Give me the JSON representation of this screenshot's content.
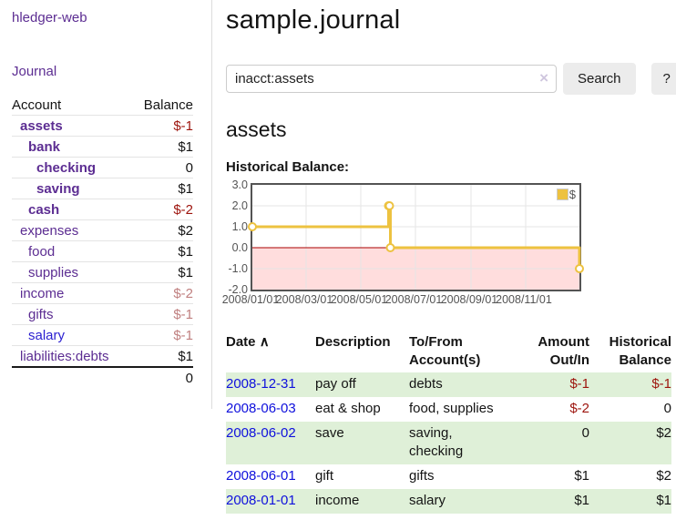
{
  "colors": {
    "link_purple": "#5c2d92",
    "link_blue_date": "#0f10dc",
    "link_blue_account": "#2a1fd0",
    "negative_strong": "#9d140d",
    "negative_soft": "#c08080",
    "row_stripe_green": "#dff0d8",
    "chart_line": "#edc240",
    "chart_negative_fill": "#ffdddd",
    "chart_zero_line": "#aa0000",
    "chart_border": "#545454",
    "grid_line": "#e5e5e5"
  },
  "sidebar": {
    "brand": "hledger-web",
    "nav": {
      "journal": "Journal"
    },
    "accounts": {
      "col_account": "Account",
      "col_balance": "Balance",
      "rows": [
        {
          "name": "assets",
          "balance": "$-1",
          "indent": 1,
          "bold": true,
          "balance_tone": "negative-strong",
          "link_tone": "purple"
        },
        {
          "name": "bank",
          "balance": "$1",
          "indent": 2,
          "bold": true,
          "balance_tone": "normal",
          "link_tone": "purple"
        },
        {
          "name": "checking",
          "balance": "0",
          "indent": 3,
          "bold": true,
          "balance_tone": "normal",
          "link_tone": "purple"
        },
        {
          "name": "saving",
          "balance": "$1",
          "indent": 3,
          "bold": true,
          "balance_tone": "normal",
          "link_tone": "purple"
        },
        {
          "name": "cash",
          "balance": "$-2",
          "indent": 2,
          "bold": true,
          "balance_tone": "negative-strong",
          "link_tone": "purple"
        },
        {
          "name": "expenses",
          "balance": "$2",
          "indent": 1,
          "bold": false,
          "balance_tone": "normal",
          "link_tone": "purple"
        },
        {
          "name": "food",
          "balance": "$1",
          "indent": 2,
          "bold": false,
          "balance_tone": "normal",
          "link_tone": "purple"
        },
        {
          "name": "supplies",
          "balance": "$1",
          "indent": 2,
          "bold": false,
          "balance_tone": "normal",
          "link_tone": "purple"
        },
        {
          "name": "income",
          "balance": "$-2",
          "indent": 1,
          "bold": false,
          "balance_tone": "negative-soft",
          "link_tone": "purple"
        },
        {
          "name": "gifts",
          "balance": "$-1",
          "indent": 2,
          "bold": false,
          "balance_tone": "negative-soft",
          "link_tone": "purple"
        },
        {
          "name": "salary",
          "balance": "$-1",
          "indent": 2,
          "bold": false,
          "balance_tone": "negative-soft",
          "link_tone": "blue"
        },
        {
          "name": "liabilities:debts",
          "balance": "$1",
          "indent": 1,
          "bold": false,
          "balance_tone": "normal",
          "link_tone": "purple"
        }
      ],
      "total": "0"
    }
  },
  "header": {
    "title": "sample.journal"
  },
  "search": {
    "value": "inacct:assets",
    "clear_icon": "×",
    "search_button": "Search",
    "help_button": "?"
  },
  "account_view": {
    "heading": "assets",
    "chart_title": "Historical Balance:"
  },
  "chart_data": {
    "type": "line",
    "step": true,
    "title": "Historical Balance:",
    "x_range": [
      "2008-01-01",
      "2008-12-31"
    ],
    "ylim": [
      -2,
      3
    ],
    "y_ticks": [
      3.0,
      2.0,
      1.0,
      0.0,
      -1.0,
      -2.0
    ],
    "x_ticks": [
      {
        "date": "2008-01-01",
        "label": "2008/01/01"
      },
      {
        "date": "2008-03-01",
        "label": "2008/03/01"
      },
      {
        "date": "2008-05-01",
        "label": "2008/05/01"
      },
      {
        "date": "2008-07-01",
        "label": "2008/07/01"
      },
      {
        "date": "2008-09-01",
        "label": "2008/09/01"
      },
      {
        "date": "2008-11-01",
        "label": "2008/11/01"
      }
    ],
    "series": [
      {
        "name": "$",
        "color": "#edc240",
        "points": [
          [
            "2008-01-01",
            1
          ],
          [
            "2008-06-01",
            2
          ],
          [
            "2008-06-02",
            2
          ],
          [
            "2008-06-03",
            0
          ],
          [
            "2008-12-31",
            -1
          ]
        ]
      }
    ],
    "legend_position": "top-right",
    "grid": true,
    "negative_region_fill": "#ffdddd",
    "zero_line_color": "#aa0000"
  },
  "register_table": {
    "sort_icon": "∧",
    "columns": {
      "date": "Date",
      "description": "Description",
      "accounts": "To/From Account(s)",
      "amount": "Amount Out/In",
      "balance": "Historical Balance"
    },
    "rows": [
      {
        "date": "2008-12-31",
        "description": "pay off",
        "accounts": "debts",
        "amount": "$-1",
        "amount_negative": true,
        "balance": "$-1",
        "balance_negative": true
      },
      {
        "date": "2008-06-03",
        "description": "eat & shop",
        "accounts": "food, supplies",
        "amount": "$-2",
        "amount_negative": true,
        "balance": "0",
        "balance_negative": false
      },
      {
        "date": "2008-06-02",
        "description": "save",
        "accounts": "saving, checking",
        "amount": "0",
        "amount_negative": false,
        "balance": "$2",
        "balance_negative": false
      },
      {
        "date": "2008-06-01",
        "description": "gift",
        "accounts": "gifts",
        "amount": "$1",
        "amount_negative": false,
        "balance": "$2",
        "balance_negative": false
      },
      {
        "date": "2008-01-01",
        "description": "income",
        "accounts": "salary",
        "amount": "$1",
        "amount_negative": false,
        "balance": "$1",
        "balance_negative": false
      }
    ]
  }
}
